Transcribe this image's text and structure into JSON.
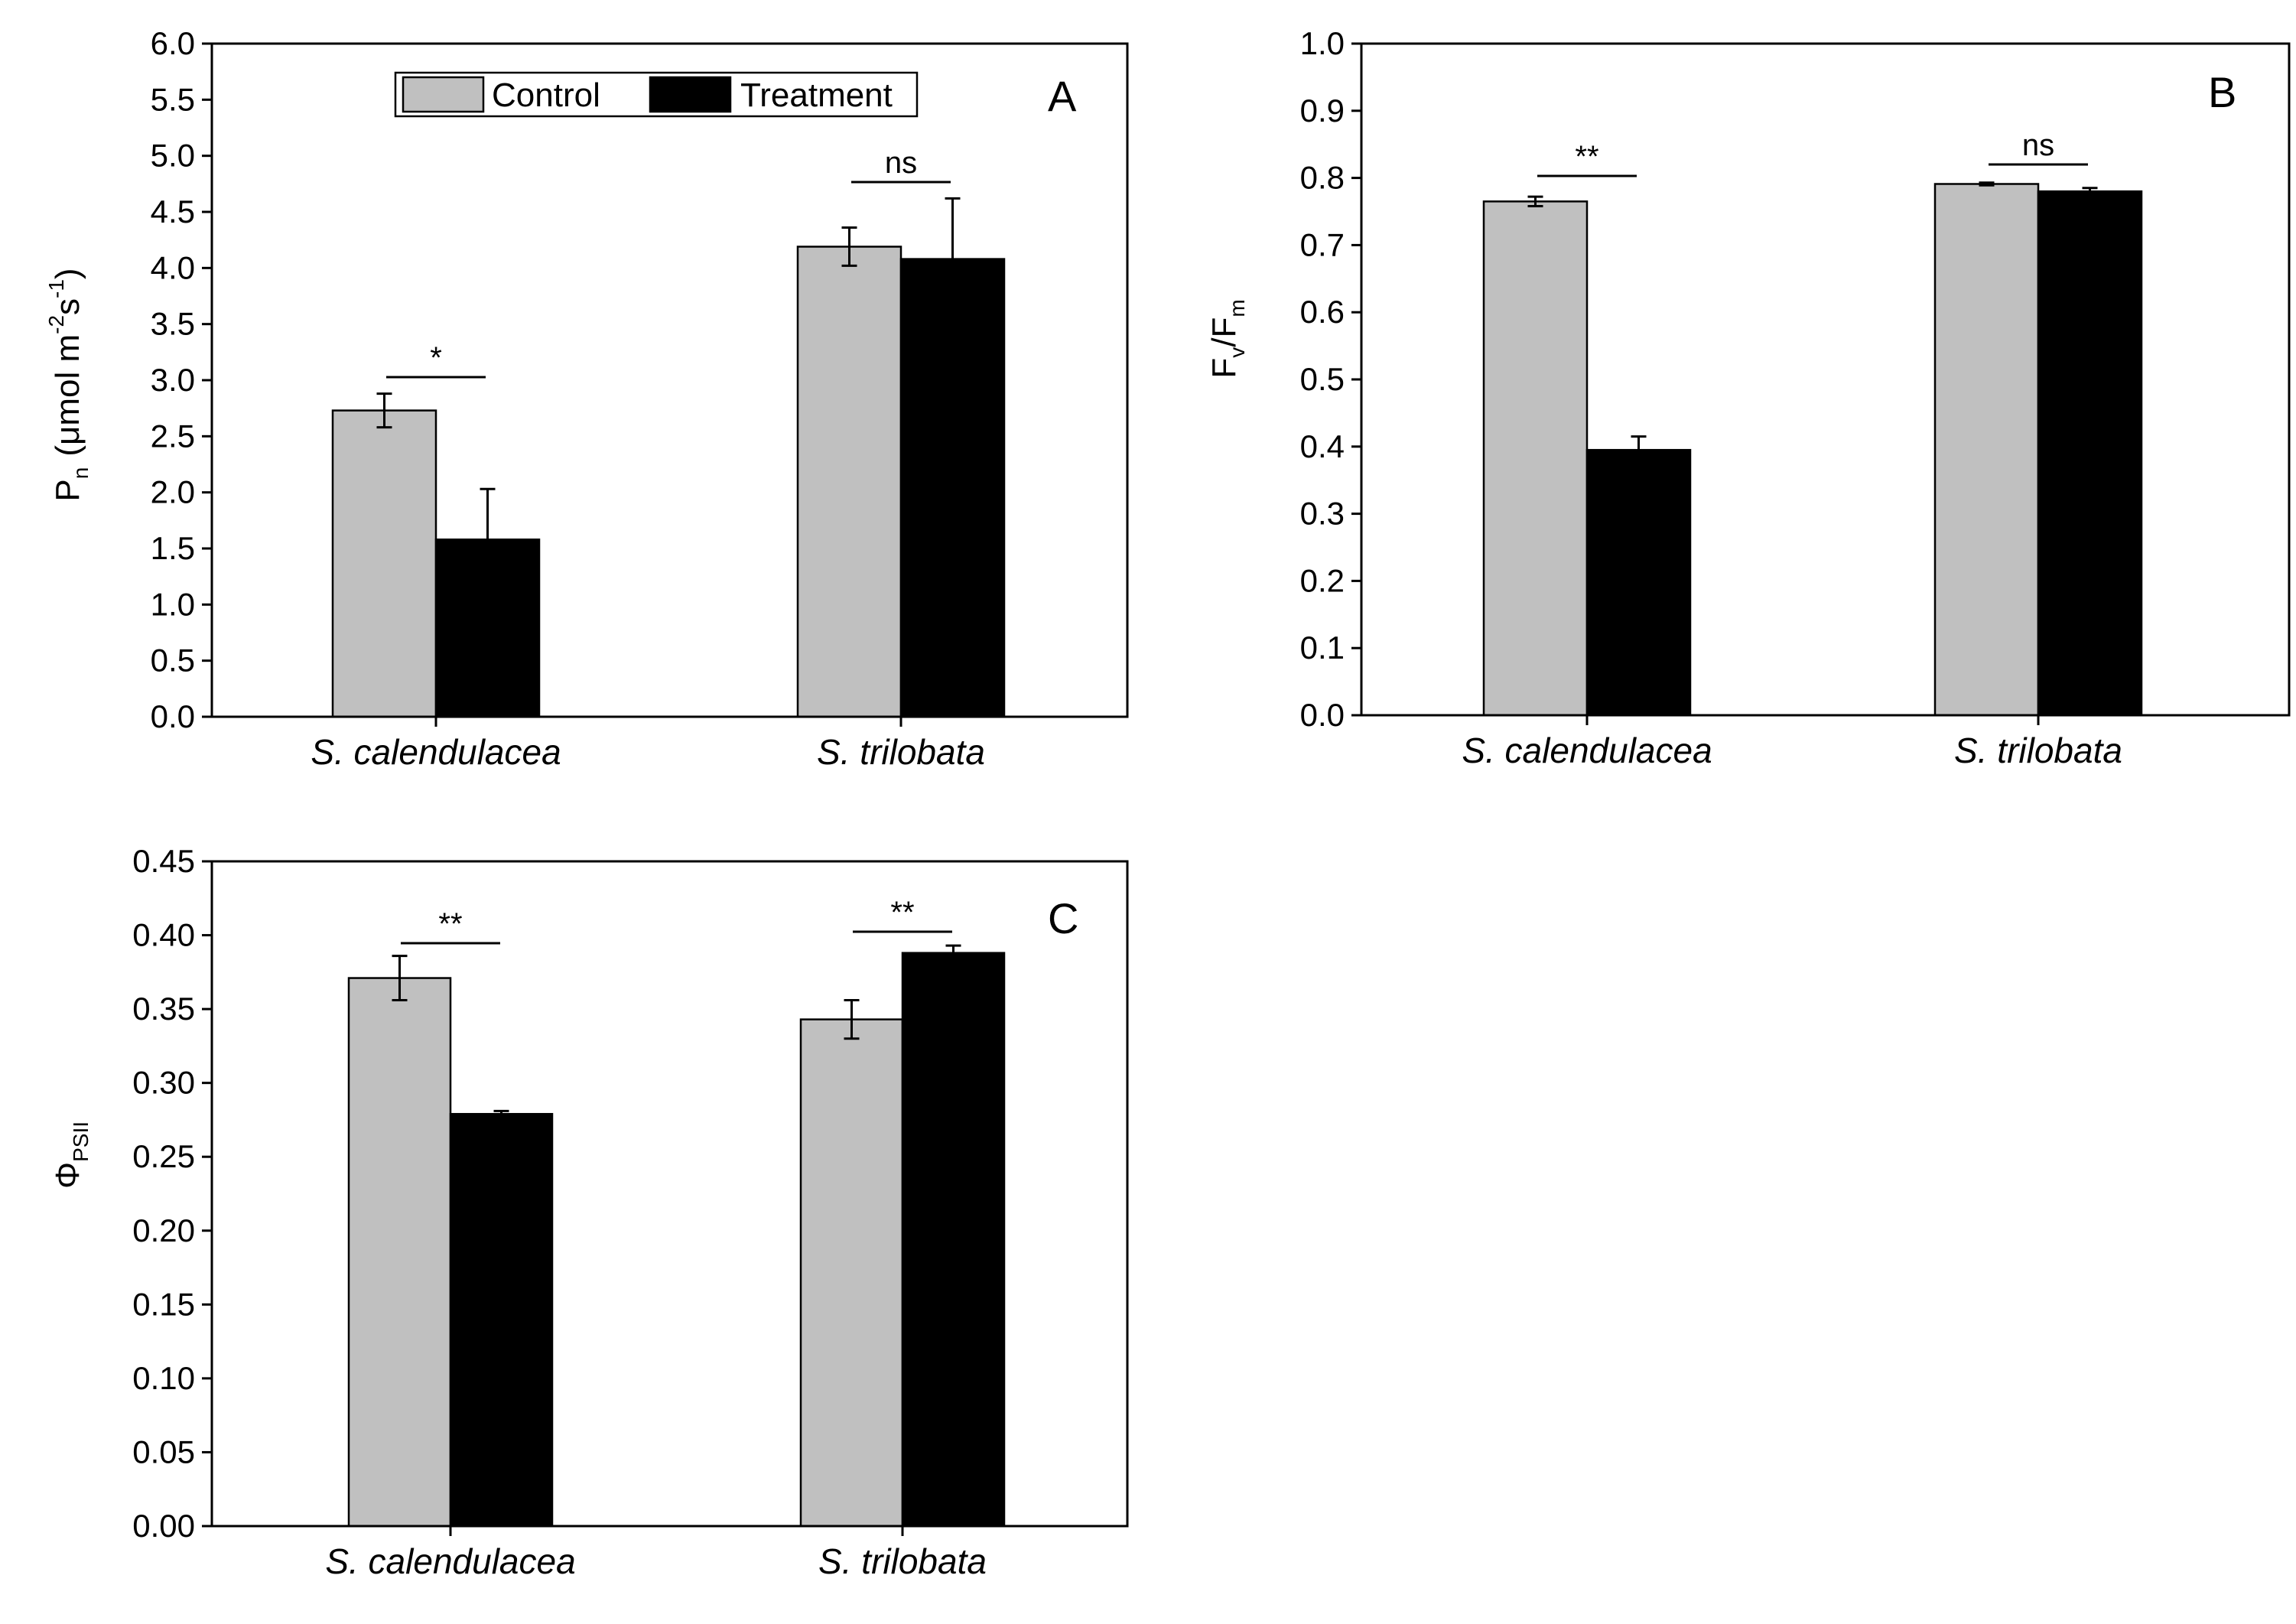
{
  "chart_data": [
    {
      "panel": "A",
      "type": "bar",
      "ylabel": "Pn (μmol m-2 s-1)",
      "ylim": [
        0,
        6.0
      ],
      "yticks": [
        "0.0",
        "0.5",
        "1.0",
        "1.5",
        "2.0",
        "2.5",
        "3.0",
        "3.5",
        "4.0",
        "4.5",
        "5.0",
        "5.5",
        "6.0"
      ],
      "categories": [
        "S. calendulacea",
        "S. trilobata"
      ],
      "series": [
        {
          "name": "Control",
          "values": [
            2.73,
            4.19
          ],
          "errors": [
            0.15,
            0.17
          ],
          "color": "#c0c0c0"
        },
        {
          "name": "Treatment",
          "values": [
            1.58,
            4.08
          ],
          "errors": [
            0.45,
            0.54
          ],
          "color": "#000000"
        }
      ],
      "significance": [
        "*",
        "ns"
      ],
      "legend": {
        "placement": "top-center",
        "entries": [
          "Control",
          "Treatment"
        ]
      }
    },
    {
      "panel": "B",
      "type": "bar",
      "ylabel": "Fv/Fm",
      "ylim": [
        0,
        1.0
      ],
      "yticks": [
        "0.0",
        "0.1",
        "0.2",
        "0.3",
        "0.4",
        "0.5",
        "0.6",
        "0.7",
        "0.8",
        "0.9",
        "1.0"
      ],
      "categories": [
        "S. calendulacea",
        "S. trilobata"
      ],
      "series": [
        {
          "name": "Control",
          "values": [
            0.765,
            0.791
          ],
          "errors": [
            0.007,
            0.002
          ],
          "color": "#c0c0c0"
        },
        {
          "name": "Treatment",
          "values": [
            0.395,
            0.78
          ],
          "errors": [
            0.02,
            0.005
          ],
          "color": "#000000"
        }
      ],
      "significance": [
        "**",
        "ns"
      ]
    },
    {
      "panel": "C",
      "type": "bar",
      "ylabel": "ΦPSII",
      "ylim": [
        0,
        0.45
      ],
      "yticks": [
        "0.00",
        "0.05",
        "0.10",
        "0.15",
        "0.20",
        "0.25",
        "0.30",
        "0.35",
        "0.40",
        "0.45"
      ],
      "categories": [
        "S. calendulacea",
        "S. trilobata"
      ],
      "series": [
        {
          "name": "Control",
          "values": [
            0.371,
            0.343
          ],
          "errors": [
            0.015,
            0.013
          ],
          "color": "#c0c0c0"
        },
        {
          "name": "Treatment",
          "values": [
            0.279,
            0.388
          ],
          "errors": [
            0.002,
            0.005
          ],
          "color": "#000000"
        }
      ],
      "significance": [
        "**",
        "**"
      ]
    }
  ],
  "axis_labels": {
    "A": {
      "main": "P",
      "sub": "n",
      "unit_open": "(μmol m",
      "exp1": "-2",
      "mid": "s",
      "exp2": "-1",
      "close": ")"
    },
    "B": {
      "f1": "F",
      "sub1": "v",
      "slash": "/F",
      "sub2": "m"
    },
    "C": {
      "main": "Φ",
      "sub": "PSII"
    }
  }
}
